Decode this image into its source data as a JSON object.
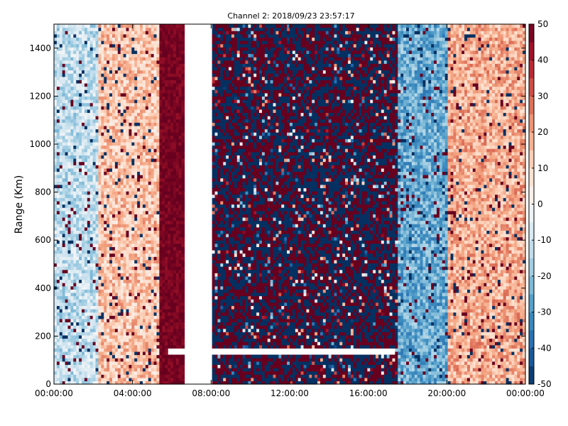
{
  "chart_data": {
    "type": "heatmap",
    "title": "Channel 2: 2018/09/23 23:57:17",
    "xlabel": "",
    "ylabel": "Range (Km)",
    "x_ticks": [
      "00:00:00",
      "04:00:00",
      "08:00:00",
      "12:00:00",
      "16:00:00",
      "20:00:00",
      "00:00:00"
    ],
    "x_range_hours": [
      0,
      24
    ],
    "y_ticks": [
      0,
      200,
      400,
      600,
      800,
      1000,
      1200,
      1400
    ],
    "ylim": [
      0,
      1500
    ],
    "colorbar": {
      "colormap": "RdBu_r",
      "range": [
        -50,
        50
      ],
      "ticks": [
        50,
        40,
        30,
        20,
        10,
        0,
        -10,
        -20,
        -30,
        -40,
        -50
      ]
    },
    "grid": false,
    "data_gaps_hours": [
      [
        6.6,
        8.0
      ]
    ],
    "features": [
      {
        "hour_start": 0,
        "hour_end": 2.2,
        "range_start": 0,
        "range_end": 1500,
        "mean_value": -12,
        "noise": "moderate"
      },
      {
        "hour_start": 2.2,
        "hour_end": 5.3,
        "range_start": 0,
        "range_end": 1500,
        "mean_value": 14,
        "noise": "moderate"
      },
      {
        "hour_start": 5.3,
        "hour_end": 6.6,
        "range_start": 0,
        "range_end": 1500,
        "mean_value": 48,
        "noise": "low"
      },
      {
        "hour_start": 8.0,
        "hour_end": 17.5,
        "range_start": 0,
        "range_end": 1500,
        "mean_value": 0,
        "noise": "random-bipolar"
      },
      {
        "hour_start": 17.5,
        "hour_end": 20.0,
        "range_start": 0,
        "range_end": 1500,
        "mean_value": -25,
        "noise": "moderate"
      },
      {
        "hour_start": 20.0,
        "hour_end": 24.0,
        "range_start": 0,
        "range_end": 1500,
        "mean_value": 18,
        "noise": "moderate"
      }
    ],
    "missing_range_strip": {
      "hour_start": 5.8,
      "hour_end": 17.4,
      "range_start": 125,
      "range_end": 145
    }
  }
}
